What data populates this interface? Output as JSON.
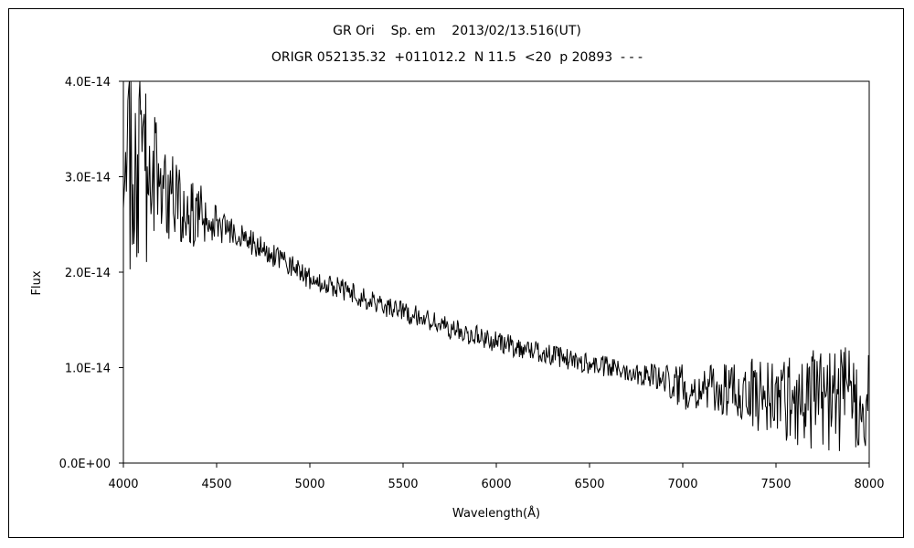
{
  "chart_data": {
    "type": "line",
    "title": "GR Ori    Sp. em    2013/02/13.516(UT)",
    "subtitle": "ORIGR 052135.32  +011012.2  N 11.5  <20  p 20893  - - -",
    "xlabel": "Wavelength(Å)",
    "ylabel": "Flux",
    "xlim": [
      4000,
      8000
    ],
    "ylim": [
      0,
      4e-14
    ],
    "x_ticks": [
      4000,
      4500,
      5000,
      5500,
      6000,
      6500,
      7000,
      7500,
      8000
    ],
    "x_tick_labels": [
      "4000",
      "4500",
      "5000",
      "5500",
      "6000",
      "6500",
      "7000",
      "7500",
      "8000"
    ],
    "y_ticks": [
      0,
      1e-14,
      2e-14,
      3e-14,
      4e-14
    ],
    "y_tick_labels": [
      "0.0E+00",
      "1.0E-14",
      "2.0E-14",
      "3.0E-14",
      "4.0E-14"
    ],
    "grid": false,
    "legend": "none",
    "line_color": "#000000",
    "series": [
      {
        "x": [
          4000,
          4050,
          4100,
          4150,
          4200,
          4250,
          4300,
          4350,
          4400,
          4450,
          4500,
          4550,
          4600,
          4650,
          4700,
          4750,
          4800,
          4850,
          4900,
          4950,
          5000,
          5100,
          5200,
          5300,
          5400,
          5500,
          5600,
          5700,
          5800,
          5900,
          6000,
          6100,
          6200,
          6300,
          6400,
          6500,
          6600,
          6700,
          6800,
          6900,
          7000,
          7100,
          7200,
          7300,
          7400,
          7500,
          7600,
          7700,
          7800,
          7900,
          8000
        ],
        "y": [
          3.2e-14,
          3.1e-14,
          3e-14,
          2.95e-14,
          2.9e-14,
          2.8e-14,
          2.7e-14,
          2.65e-14,
          2.6e-14,
          2.55e-14,
          2.5e-14,
          2.45e-14,
          2.4e-14,
          2.35e-14,
          2.3e-14,
          2.25e-14,
          2.18e-14,
          2.12e-14,
          2.05e-14,
          2e-14,
          1.95e-14,
          1.87e-14,
          1.8e-14,
          1.72e-14,
          1.65e-14,
          1.58e-14,
          1.52e-14,
          1.45e-14,
          1.38e-14,
          1.33e-14,
          1.27e-14,
          1.22e-14,
          1.18e-14,
          1.13e-14,
          1.08e-14,
          1.04e-14,
          1e-14,
          9.7e-15,
          9.3e-15,
          8.8e-15,
          8e-15,
          7.8e-15,
          7.6e-15,
          7.5e-15,
          7.2e-15,
          7e-15,
          6.6e-15,
          6.6e-15,
          6.6e-15,
          6.5e-15,
          6.5e-15
        ],
        "noise": [
          5e-15,
          8e-15,
          7e-15,
          5e-15,
          3.5e-15,
          3e-15,
          2.5e-15,
          2e-15,
          2.5e-15,
          1.5e-15,
          1.2e-15,
          1e-15,
          8e-16,
          8e-16,
          8e-16,
          8e-16,
          8e-16,
          8e-16,
          8e-16,
          8e-16,
          8e-16,
          7e-16,
          7e-16,
          7e-16,
          7e-16,
          7e-16,
          7e-16,
          7e-16,
          7e-16,
          7e-16,
          7e-16,
          7e-16,
          7e-16,
          7e-16,
          7e-16,
          7e-16,
          7e-16,
          7e-16,
          8e-16,
          1e-15,
          1.5e-15,
          1.5e-15,
          1.7e-15,
          2e-15,
          2.5e-15,
          2.5e-15,
          3e-15,
          3.5e-15,
          3.5e-15,
          3.5e-15,
          3e-15
        ]
      }
    ]
  }
}
